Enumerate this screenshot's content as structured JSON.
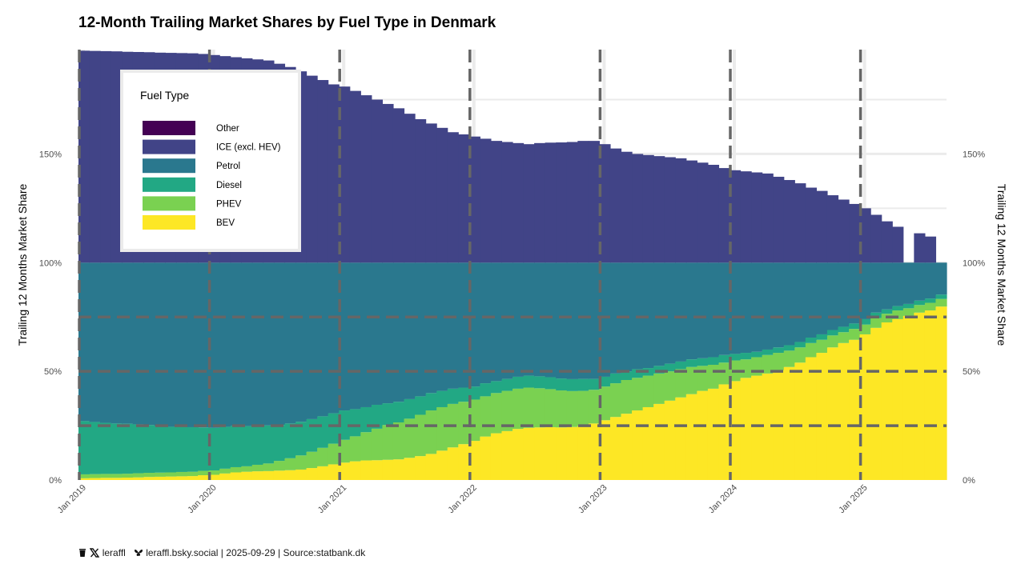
{
  "title": "12-Month Trailing Market Shares by Fuel Type in Denmark",
  "caption": {
    "handle": "leraffl",
    "bsky": "leraffl.bsky.social",
    "date": "2025-09-29",
    "source": "Source:statbank.dk",
    "sep": "|"
  },
  "chart_data": {
    "type": "area",
    "title": "12-Month Trailing Market Shares by Fuel Type in Denmark",
    "ylabel_left": "Trailing 12 Months Market Share",
    "ylabel_right": "Trailing 12 Months Market Share",
    "y_ticks": [
      0,
      50,
      100,
      150
    ],
    "y_tick_labels": [
      "0%",
      "50%",
      "100%",
      "150%"
    ],
    "ylim": [
      0,
      198
    ],
    "x_start": "2019-01",
    "n_months": 80,
    "x_tick_labels": [
      "Jan 2019",
      "Jan 2020",
      "Jan 2021",
      "Jan 2022",
      "Jan 2023",
      "Jan 2024",
      "Jan 2025"
    ],
    "reference_lines_y": [
      25,
      50,
      75
    ],
    "colors": {
      "Other": "#440154",
      "ICE (excl. HEV)": "#414487",
      "Petrol": "#2a788e",
      "Diesel": "#22a884",
      "PHEV": "#7ad151",
      "BEV": "#fde725"
    },
    "legend": {
      "title": "Fuel Type",
      "entries": [
        "Other",
        "ICE (excl. HEV)",
        "Petrol",
        "Diesel",
        "PHEV",
        "BEV"
      ],
      "placement": "top-left"
    },
    "series": [
      {
        "name": "BEV",
        "values": [
          0.8,
          0.9,
          1.0,
          1.0,
          1.1,
          1.2,
          1.4,
          1.5,
          1.6,
          1.7,
          1.8,
          2.2,
          2.4,
          3.0,
          3.5,
          3.8,
          4.0,
          4.1,
          4.3,
          4.5,
          4.8,
          5.5,
          6.3,
          7.2,
          8.0,
          8.6,
          9.0,
          9.1,
          9.3,
          9.5,
          10.2,
          11.0,
          12.0,
          13.5,
          15.0,
          16.5,
          18.0,
          20.0,
          21.5,
          22.5,
          23.5,
          24.0,
          24.2,
          24.3,
          24.2,
          24.4,
          25.0,
          26.0,
          27.5,
          29.0,
          30.5,
          32.0,
          33.5,
          35.0,
          36.5,
          38.0,
          39.5,
          41.0,
          42.0,
          44.0,
          45.5,
          47.0,
          48.0,
          49.0,
          50.5,
          52.0,
          54.0,
          56.5,
          58.5,
          61.0,
          63.0,
          64.5,
          67.0,
          70.0,
          72.5,
          74.0,
          75.5,
          77.0,
          78.0,
          79.8
        ]
      },
      {
        "name": "PHEV",
        "values": [
          1.8,
          1.8,
          1.8,
          1.8,
          1.8,
          1.9,
          1.9,
          1.9,
          1.9,
          2.0,
          2.0,
          2.0,
          2.0,
          2.2,
          2.4,
          2.5,
          3.0,
          3.5,
          4.5,
          5.5,
          6.5,
          7.5,
          8.5,
          9.5,
          10.5,
          11.5,
          13.0,
          14.5,
          16.0,
          17.0,
          18.0,
          19.0,
          20.0,
          20.0,
          20.0,
          19.5,
          19.0,
          18.5,
          18.5,
          18.5,
          18.5,
          18.5,
          18.0,
          17.5,
          17.0,
          16.5,
          16.0,
          15.5,
          15.5,
          15.5,
          15.5,
          15.0,
          14.5,
          14.0,
          13.5,
          13.0,
          12.5,
          11.5,
          11.0,
          10.0,
          9.5,
          8.5,
          8.5,
          8.5,
          8.0,
          7.5,
          7.0,
          6.5,
          6.0,
          5.5,
          5.0,
          5.0,
          4.5,
          4.5,
          4.0,
          4.0,
          3.5,
          3.5,
          3.5,
          3.5
        ]
      },
      {
        "name": "Diesel",
        "values": [
          24.5,
          24.0,
          23.5,
          23.2,
          23.0,
          22.5,
          22.0,
          21.5,
          21.0,
          20.8,
          20.5,
          20.0,
          19.6,
          19.3,
          19.0,
          18.5,
          18.0,
          17.5,
          16.5,
          16.0,
          15.5,
          15.0,
          14.5,
          14.0,
          13.5,
          12.5,
          11.5,
          11.0,
          10.0,
          9.5,
          9.0,
          8.5,
          8.0,
          7.5,
          7.0,
          6.5,
          6.0,
          6.0,
          5.5,
          5.5,
          5.5,
          5.5,
          5.5,
          5.5,
          5.5,
          5.5,
          5.5,
          5.0,
          4.5,
          4.5,
          4.0,
          4.0,
          3.5,
          3.5,
          3.5,
          3.5,
          3.5,
          3.5,
          3.5,
          3.5,
          3.0,
          3.0,
          2.5,
          2.5,
          2.5,
          2.5,
          2.5,
          2.5,
          2.5,
          2.5,
          2.5,
          2.5,
          2.5,
          2.5,
          2.0,
          2.0,
          2.0,
          2.0,
          2.0,
          2.0
        ]
      },
      {
        "name": "Petrol",
        "values": [
          72.9,
          73.3,
          73.7,
          74.0,
          74.1,
          74.4,
          74.7,
          75.1,
          75.5,
          75.5,
          75.7,
          75.8,
          76.0,
          75.5,
          75.1,
          75.2,
          75.0,
          74.9,
          74.7,
          74.0,
          73.2,
          72.0,
          70.7,
          69.3,
          68.0,
          67.4,
          66.5,
          65.4,
          64.7,
          64.0,
          62.8,
          61.5,
          60.0,
          59.0,
          58.0,
          57.5,
          57.0,
          55.5,
          54.5,
          53.5,
          52.5,
          52.0,
          52.3,
          52.7,
          53.3,
          53.6,
          53.5,
          53.5,
          52.5,
          51.0,
          50.0,
          49.0,
          48.5,
          47.5,
          46.5,
          45.5,
          44.5,
          44.0,
          43.5,
          42.5,
          42.0,
          41.5,
          41.0,
          40.0,
          39.0,
          38.0,
          36.5,
          34.5,
          33.0,
          31.0,
          29.5,
          28.0,
          26.0,
          23.0,
          21.5,
          20.0,
          19.0,
          17.5,
          16.5,
          14.7
        ]
      },
      {
        "name": "ICE (excl. HEV)",
        "values": [
          97.5,
          97.4,
          97.3,
          97.2,
          97.0,
          96.9,
          96.8,
          96.6,
          96.5,
          96.4,
          96.3,
          96.0,
          95.5,
          95.0,
          94.5,
          94.0,
          93.5,
          93.0,
          91.5,
          90.0,
          88.0,
          86.0,
          84.0,
          82.0,
          81.0,
          79.0,
          77.0,
          75.0,
          73.0,
          71.0,
          68.5,
          66.0,
          64.0,
          62.0,
          60.0,
          59.0,
          58.0,
          57.0,
          56.0,
          55.5,
          55.0,
          54.5,
          55.0,
          55.2,
          55.3,
          55.5,
          56.0,
          56.0,
          54.5,
          52.5,
          51.0,
          50.0,
          49.5,
          49.0,
          48.5,
          48.0,
          47.0,
          46.0,
          45.0,
          43.5,
          42.5,
          42.0,
          41.5,
          41.0,
          39.5,
          38.0,
          36.5,
          34.5,
          33.0,
          31.0,
          29.0,
          27.0,
          25.0,
          22.0,
          19.0,
          16.5,
          0.0,
          13.5,
          12.0,
          0.0
        ]
      },
      {
        "name": "Other",
        "values": [
          0.0,
          0.0,
          0.0,
          0.0,
          0.0,
          0.0,
          0.0,
          0.0,
          0.0,
          0.0,
          0.0,
          0.0,
          0.0,
          0.0,
          0.0,
          0.0,
          0.0,
          0.0,
          0.0,
          0.0,
          0.0,
          0.0,
          0.0,
          0.0,
          0.0,
          0.0,
          0.0,
          0.0,
          0.0,
          0.0,
          0.0,
          0.0,
          0.0,
          0.0,
          0.0,
          0.0,
          0.0,
          0.0,
          0.0,
          0.0,
          0.0,
          0.0,
          0.0,
          0.0,
          0.0,
          0.0,
          0.0,
          0.0,
          0.0,
          0.0,
          0.0,
          0.0,
          0.0,
          0.0,
          0.0,
          0.0,
          0.0,
          0.0,
          0.0,
          0.0,
          0.0,
          0.0,
          0.0,
          0.0,
          0.0,
          0.0,
          0.0,
          0.0,
          0.0,
          0.0,
          0.0,
          0.0,
          0.0,
          0.0,
          0.0,
          0.0,
          0.0,
          0.0,
          0.0,
          0.0
        ]
      }
    ]
  }
}
